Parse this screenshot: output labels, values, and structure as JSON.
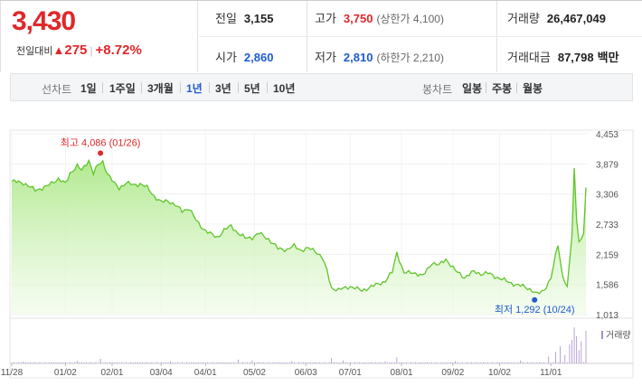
{
  "quote": {
    "price": "3,430",
    "change_label": "전일대비",
    "change_value": "275",
    "change_percent": "+8.72%",
    "stats": {
      "prev_close_label": "전일",
      "prev_close": "3,155",
      "high_label": "고가",
      "high": "3,750",
      "upper_limit": "(상한가 4,100)",
      "volume_label": "거래량",
      "volume": "26,467,049",
      "open_label": "시가",
      "open": "2,860",
      "low_label": "저가",
      "low": "2,810",
      "lower_limit": "(하한가 2,210)",
      "amount_label": "거래대금",
      "amount": "87,798",
      "amount_unit": "백만"
    }
  },
  "period_bar": {
    "line_label": "선차트",
    "line_periods": [
      "1일",
      "1주일",
      "3개월",
      "1년",
      "3년",
      "5년",
      "10년"
    ],
    "active_period": "1년",
    "candle_label": "봉차트",
    "candle_periods": [
      "일봉",
      "주봉",
      "월봉"
    ]
  },
  "colors": {
    "up": "#e0272a",
    "down": "#1e5bcc",
    "line": "#5fc52a",
    "volume": "#a78bd0"
  },
  "chart_data": {
    "type": "area",
    "ylim": [
      1013,
      4453
    ],
    "y_ticks": [
      "4,453",
      "3,879",
      "3,306",
      "2,733",
      "2,159",
      "1,586",
      "1,013"
    ],
    "x_ticks": [
      "11/28",
      "01/02",
      "02/01",
      "03/04",
      "04/01",
      "05/02",
      "06/03",
      "07/01",
      "08/01",
      "09/02",
      "10/02",
      "11/01"
    ],
    "x_tick_index": [
      0,
      23,
      43,
      64,
      83,
      104,
      126,
      145,
      167,
      189,
      209,
      231
    ],
    "n_points": 247,
    "series_keys": [
      [
        0,
        3550
      ],
      [
        5,
        3520
      ],
      [
        10,
        3380
      ],
      [
        15,
        3450
      ],
      [
        20,
        3600
      ],
      [
        23,
        3500
      ],
      [
        25,
        3700
      ],
      [
        28,
        3850
      ],
      [
        30,
        3750
      ],
      [
        33,
        3950
      ],
      [
        35,
        3700
      ],
      [
        37,
        3860
      ],
      [
        39,
        3920
      ],
      [
        41,
        3700
      ],
      [
        44,
        3500
      ],
      [
        46,
        3420
      ],
      [
        49,
        3520
      ],
      [
        52,
        3480
      ],
      [
        55,
        3500
      ],
      [
        58,
        3430
      ],
      [
        61,
        3270
      ],
      [
        64,
        3150
      ],
      [
        67,
        3180
      ],
      [
        70,
        3100
      ],
      [
        73,
        2980
      ],
      [
        76,
        3040
      ],
      [
        79,
        2800
      ],
      [
        82,
        2650
      ],
      [
        85,
        2550
      ],
      [
        88,
        2480
      ],
      [
        91,
        2620
      ],
      [
        94,
        2700
      ],
      [
        97,
        2560
      ],
      [
        100,
        2470
      ],
      [
        103,
        2480
      ],
      [
        106,
        2560
      ],
      [
        110,
        2450
      ],
      [
        114,
        2270
      ],
      [
        118,
        2250
      ],
      [
        121,
        2320
      ],
      [
        124,
        2240
      ],
      [
        127,
        2270
      ],
      [
        130,
        2230
      ],
      [
        133,
        2100
      ],
      [
        135,
        1850
      ],
      [
        137,
        1520
      ],
      [
        140,
        1480
      ],
      [
        145,
        1550
      ],
      [
        150,
        1470
      ],
      [
        155,
        1560
      ],
      [
        160,
        1650
      ],
      [
        163,
        1820
      ],
      [
        165,
        2200
      ],
      [
        168,
        1800
      ],
      [
        172,
        1820
      ],
      [
        176,
        1740
      ],
      [
        180,
        2000
      ],
      [
        183,
        1950
      ],
      [
        186,
        2070
      ],
      [
        190,
        1850
      ],
      [
        194,
        1720
      ],
      [
        198,
        1830
      ],
      [
        201,
        1790
      ],
      [
        204,
        1800
      ],
      [
        208,
        1720
      ],
      [
        212,
        1650
      ],
      [
        216,
        1580
      ],
      [
        220,
        1540
      ],
      [
        222,
        1500
      ],
      [
        225,
        1400
      ],
      [
        228,
        1480
      ],
      [
        231,
        1700
      ],
      [
        234,
        2350
      ],
      [
        236,
        1750
      ],
      [
        238,
        1550
      ],
      [
        240,
        2500
      ],
      [
        241,
        3800
      ],
      [
        242,
        2800
      ],
      [
        243,
        2400
      ],
      [
        244,
        2450
      ],
      [
        245,
        2550
      ],
      [
        246,
        3430
      ]
    ],
    "annotations": [
      {
        "kind": "max",
        "label": "최고 4,086 (01/26)",
        "index": 38,
        "value": 4086
      },
      {
        "kind": "min",
        "label": "최저 1,292 (10/24)",
        "index": 224,
        "value": 1292
      }
    ],
    "volume_label": "거래량",
    "volume_spikes": [
      [
        5,
        0.05
      ],
      [
        28,
        0.07
      ],
      [
        38,
        0.12
      ],
      [
        68,
        0.06
      ],
      [
        97,
        0.1
      ],
      [
        103,
        0.08
      ],
      [
        120,
        0.06
      ],
      [
        137,
        0.14
      ],
      [
        142,
        0.08
      ],
      [
        160,
        0.06
      ],
      [
        165,
        0.16
      ],
      [
        190,
        0.06
      ],
      [
        218,
        0.08
      ],
      [
        230,
        0.18
      ],
      [
        233,
        0.3
      ],
      [
        235,
        0.45
      ],
      [
        237,
        0.22
      ],
      [
        239,
        0.5
      ],
      [
        240,
        0.62
      ],
      [
        241,
        0.95
      ],
      [
        242,
        0.72
      ],
      [
        243,
        0.35
      ],
      [
        244,
        0.58
      ],
      [
        246,
        0.86
      ]
    ]
  }
}
